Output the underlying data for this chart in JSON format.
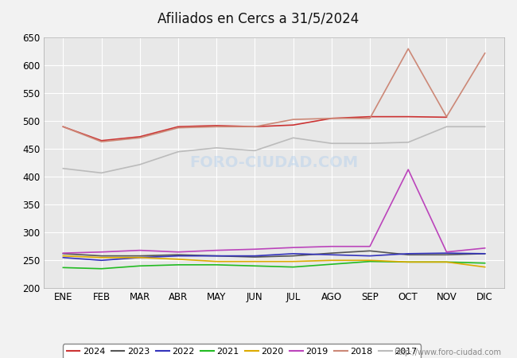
{
  "title": "Afiliados en Cercs a 31/5/2024",
  "title_color": "#222222",
  "title_bg": "#7aaed6",
  "xlabel": "",
  "ylabel": "",
  "ylim": [
    200,
    650
  ],
  "yticks": [
    200,
    250,
    300,
    350,
    400,
    450,
    500,
    550,
    600,
    650
  ],
  "months": [
    "ENE",
    "FEB",
    "MAR",
    "ABR",
    "MAY",
    "JUN",
    "JUL",
    "AGO",
    "SEP",
    "OCT",
    "NOV",
    "DIC"
  ],
  "watermark": "FORO-CIUDAD.COM",
  "url": "http://www.foro-ciudad.com",
  "series": {
    "2024": {
      "color": "#cc3333",
      "linewidth": 1.2,
      "data": [
        490,
        465,
        472,
        490,
        492,
        490,
        493,
        505,
        508,
        508,
        507,
        null
      ]
    },
    "2023": {
      "color": "#555555",
      "linewidth": 1.2,
      "data": [
        262,
        258,
        258,
        260,
        258,
        256,
        258,
        263,
        267,
        260,
        260,
        262
      ]
    },
    "2022": {
      "color": "#3333bb",
      "linewidth": 1.2,
      "data": [
        255,
        250,
        255,
        258,
        258,
        258,
        262,
        260,
        258,
        262,
        263,
        262
      ]
    },
    "2021": {
      "color": "#22bb22",
      "linewidth": 1.2,
      "data": [
        237,
        235,
        240,
        242,
        242,
        240,
        238,
        243,
        248,
        247,
        247,
        245
      ]
    },
    "2020": {
      "color": "#ddaa00",
      "linewidth": 1.2,
      "data": [
        258,
        255,
        255,
        252,
        248,
        248,
        248,
        250,
        250,
        247,
        247,
        238
      ]
    },
    "2019": {
      "color": "#bb44bb",
      "linewidth": 1.2,
      "data": [
        263,
        265,
        268,
        265,
        268,
        270,
        273,
        275,
        275,
        413,
        265,
        272
      ]
    },
    "2018": {
      "color": "#cc8877",
      "linewidth": 1.2,
      "data": [
        490,
        463,
        470,
        488,
        490,
        490,
        503,
        505,
        505,
        630,
        508,
        622
      ]
    },
    "2017": {
      "color": "#bbbbbb",
      "linewidth": 1.2,
      "data": [
        415,
        407,
        422,
        445,
        452,
        447,
        470,
        460,
        460,
        462,
        490,
        490
      ]
    }
  },
  "legend_order": [
    "2024",
    "2023",
    "2022",
    "2021",
    "2020",
    "2019",
    "2018",
    "2017"
  ],
  "background_color": "#f2f2f2",
  "plot_bg": "#e8e8e8",
  "grid_color": "#ffffff"
}
